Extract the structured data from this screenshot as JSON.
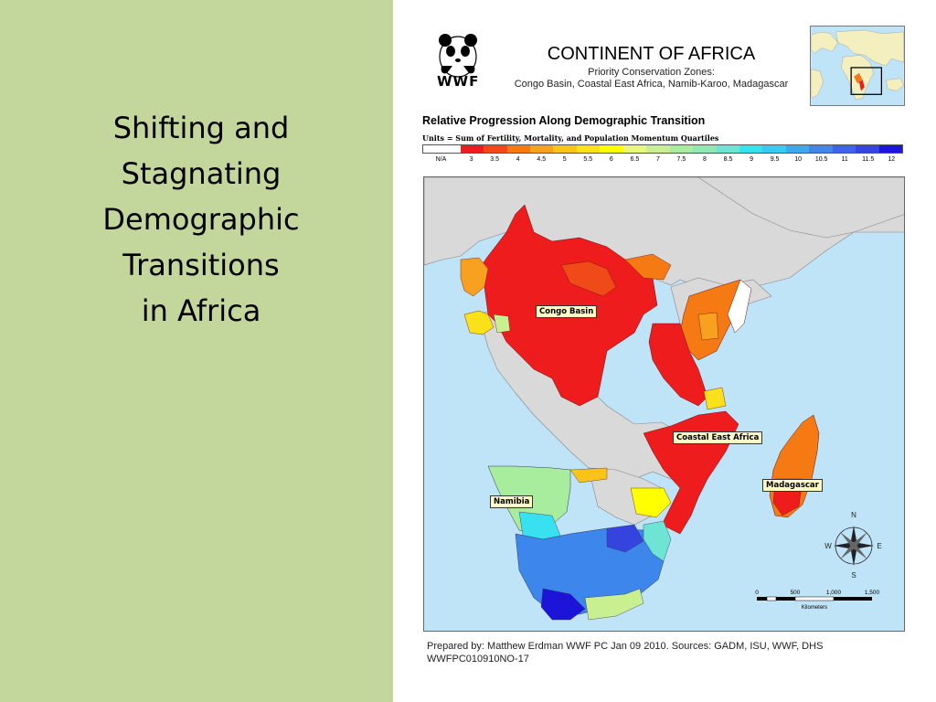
{
  "slide": {
    "title_lines": [
      "Shifting and",
      "Stagnating",
      "Demographic",
      "Transitions",
      "in Africa"
    ]
  },
  "map": {
    "logo_text": "WWF",
    "title": "CONTINENT OF AFRICA",
    "subtitle_lines": [
      "Priority Conservation Zones:",
      "Congo Basin, Coastal East Africa, Namib-Karoo, Madagascar"
    ],
    "legend": {
      "title": "Relative Progression Along Demographic Transition",
      "units": "Units = Sum of Fertility, Mortality, and Population Momentum Quartiles",
      "labels": [
        "N/A",
        "3",
        "3.5",
        "4",
        "4.5",
        "5",
        "5.5",
        "6",
        "6.5",
        "7",
        "7.5",
        "8",
        "8.5",
        "9",
        "9.5",
        "10",
        "10.5",
        "11",
        "11.5",
        "12"
      ],
      "colors": [
        "#ffffff",
        "#ee1c1c",
        "#f24a16",
        "#f57a14",
        "#f8a020",
        "#fbc21c",
        "#fde01a",
        "#ffff00",
        "#e8f87a",
        "#c8f090",
        "#a8ec9e",
        "#8ee8b4",
        "#6ee4d4",
        "#38e0f0",
        "#3cc8f4",
        "#3ca8f0",
        "#3c86ec",
        "#3c64e4",
        "#3444dc",
        "#1c14d8"
      ]
    },
    "zone_labels": {
      "congo": "Congo Basin",
      "coastal": "Coastal East Africa",
      "namibia": "Namibia",
      "madagascar": "Madagascar"
    },
    "compass": {
      "n": "N",
      "s": "S",
      "e": "E",
      "w": "W"
    },
    "scale": {
      "ticks": [
        "0",
        "500",
        "1,000",
        "1,500"
      ],
      "unit": "Kilometers"
    },
    "credits": [
      "Prepared by: Matthew Erdman WWF PC Jan 09 2010.  Sources: GADM, ISU, WWF, DHS",
      "WWFPC010910NO-17"
    ],
    "colors": {
      "ocean": "#bfe3f7",
      "land_gray": "#d9d9d9",
      "panel_green": "#c3d69b"
    }
  }
}
